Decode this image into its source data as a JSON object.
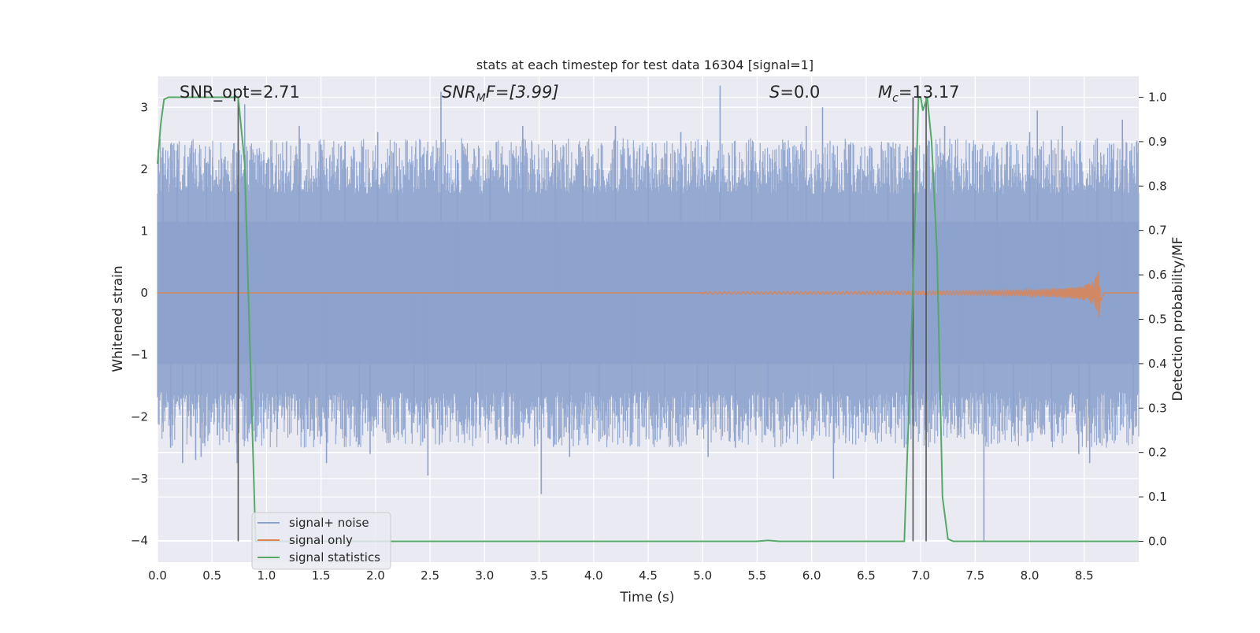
{
  "chart_data": {
    "type": "line",
    "title": "stats at each timestep for test data 16304 [signal=1]",
    "xlabel": "Time (s)",
    "ylabel": "Whitened strain",
    "y2label": "Detection probability/MF",
    "xlim": [
      0,
      9.0
    ],
    "ylim": [
      -4.35,
      3.5
    ],
    "y2lim": [
      -0.047,
      1.047
    ],
    "x_ticks": [
      0.0,
      0.5,
      1.0,
      1.5,
      2.0,
      2.5,
      3.0,
      3.5,
      4.0,
      4.5,
      5.0,
      5.5,
      6.0,
      6.5,
      7.0,
      7.5,
      8.0,
      8.5
    ],
    "x_tick_labels": [
      "0.0",
      "0.5",
      "1.0",
      "1.5",
      "2.0",
      "2.5",
      "3.0",
      "3.5",
      "4.0",
      "4.5",
      "5.0",
      "5.5",
      "6.0",
      "6.5",
      "7.0",
      "7.5",
      "8.0",
      "8.5"
    ],
    "y_ticks": [
      3,
      2,
      1,
      0,
      -1,
      -2,
      -3,
      -4
    ],
    "y_tick_labels": [
      "3",
      "2",
      "1",
      "0",
      "−1",
      "−2",
      "−3",
      "−4"
    ],
    "y2_ticks": [
      1.0,
      0.9,
      0.8,
      0.7,
      0.6,
      0.5,
      0.4,
      0.3,
      0.2,
      0.1,
      0.0
    ],
    "y2_tick_labels": [
      "1.0",
      "0.9",
      "0.8",
      "0.7",
      "0.6",
      "0.5",
      "0.4",
      "0.3",
      "0.2",
      "0.1",
      "0.0"
    ],
    "annotations": {
      "snr_opt": "SNR_opt=2.71",
      "snr_mf_main": "SNR",
      "snr_mf_sub": "M",
      "snr_mf_rest": "F=[3.99]",
      "s_main": "S",
      "s_rest": "=0.0",
      "mc_main": "M",
      "mc_sub": "c",
      "mc_rest": "=13.17"
    },
    "legend_position": "lower-left",
    "grid": true,
    "series": [
      {
        "name": "signal+ noise",
        "color": "#8da2cc",
        "axis": "left",
        "noise_band": [
          -1.6,
          1.6
        ],
        "spikes": [
          [
            0.05,
            2.35
          ],
          [
            0.12,
            -2.5
          ],
          [
            0.18,
            2.3
          ],
          [
            0.23,
            -2.75
          ],
          [
            0.28,
            2.2
          ],
          [
            0.35,
            -2.7
          ],
          [
            0.4,
            -2.65
          ],
          [
            0.45,
            2.1
          ],
          [
            0.55,
            -2.3
          ],
          [
            0.62,
            2.2
          ],
          [
            0.73,
            -2.75
          ],
          [
            0.8,
            3.05
          ],
          [
            0.9,
            -2.4
          ],
          [
            1.0,
            2.1
          ],
          [
            1.1,
            -2.2
          ],
          [
            1.3,
            2.7
          ],
          [
            1.38,
            -2.2
          ],
          [
            1.5,
            2.4
          ],
          [
            1.55,
            -2.75
          ],
          [
            1.72,
            2.45
          ],
          [
            1.85,
            -2.45
          ],
          [
            1.95,
            -2.6
          ],
          [
            2.02,
            2.6
          ],
          [
            2.2,
            2.05
          ],
          [
            2.35,
            -2.1
          ],
          [
            2.45,
            -2.35
          ],
          [
            2.48,
            -2.95
          ],
          [
            2.6,
            3.25
          ],
          [
            2.75,
            2.15
          ],
          [
            2.92,
            -2.35
          ],
          [
            3.05,
            2.3
          ],
          [
            3.2,
            -2.45
          ],
          [
            3.35,
            2.7
          ],
          [
            3.52,
            -3.25
          ],
          [
            3.65,
            2.4
          ],
          [
            3.78,
            -2.65
          ],
          [
            3.9,
            2.2
          ],
          [
            4.05,
            -2.4
          ],
          [
            4.2,
            2.7
          ],
          [
            4.35,
            -2.45
          ],
          [
            4.5,
            2.25
          ],
          [
            4.65,
            -2.1
          ],
          [
            4.8,
            2.6
          ],
          [
            4.95,
            -2.3
          ],
          [
            5.05,
            -2.65
          ],
          [
            5.16,
            3.35
          ],
          [
            5.3,
            -2.5
          ],
          [
            5.45,
            2.15
          ],
          [
            5.6,
            -2.2
          ],
          [
            5.78,
            2.3
          ],
          [
            5.95,
            2.7
          ],
          [
            6.1,
            3.0
          ],
          [
            6.2,
            -3.0
          ],
          [
            6.35,
            2.4
          ],
          [
            6.5,
            -2.3
          ],
          [
            6.7,
            2.1
          ],
          [
            6.85,
            -2.5
          ],
          [
            6.95,
            2.35
          ],
          [
            7.1,
            -2.2
          ],
          [
            7.22,
            2.7
          ],
          [
            7.35,
            -2.3
          ],
          [
            7.5,
            2.4
          ],
          [
            7.58,
            -4.0
          ],
          [
            7.7,
            2.25
          ],
          [
            7.85,
            -2.1
          ],
          [
            8.0,
            2.6
          ],
          [
            8.07,
            2.95
          ],
          [
            8.2,
            -2.4
          ],
          [
            8.3,
            2.7
          ],
          [
            8.45,
            -2.6
          ],
          [
            8.55,
            -2.75
          ],
          [
            8.62,
            2.5
          ],
          [
            8.75,
            2.4
          ],
          [
            8.85,
            2.8
          ],
          [
            8.95,
            -2.3
          ]
        ]
      },
      {
        "name": "signal only",
        "color": "#dd8452",
        "axis": "left",
        "chirp_start": 5.0,
        "chirp_peak_time": 8.65,
        "chirp_peak_amp": 0.5
      },
      {
        "name": "signal statistics",
        "color": "#55a868",
        "axis": "right",
        "x": [
          0.0,
          0.03,
          0.06,
          0.1,
          0.15,
          0.3,
          0.5,
          0.65,
          0.74,
          0.8,
          0.84,
          0.9,
          1.0,
          2.0,
          3.0,
          4.0,
          5.0,
          5.5,
          5.6,
          5.7,
          6.0,
          6.5,
          6.85,
          6.92,
          6.98,
          7.0,
          7.02,
          7.06,
          7.1,
          7.15,
          7.2,
          7.25,
          7.3,
          7.5,
          7.6,
          8.0,
          9.0
        ],
        "y": [
          0.85,
          0.94,
          0.995,
          1.0,
          1.0,
          1.0,
          1.0,
          1.0,
          1.0,
          0.85,
          0.5,
          0.0,
          0.0,
          0.0,
          0.0,
          0.0,
          0.0,
          0.0,
          0.002,
          0.0,
          0.0,
          0.0,
          0.0,
          0.5,
          1.0,
          1.0,
          0.97,
          1.0,
          0.9,
          0.65,
          0.1,
          0.005,
          0.0,
          0.0,
          0.0,
          0.0,
          0.0
        ]
      }
    ],
    "vertical_lines": [
      0.74,
      6.93,
      7.05
    ],
    "vertical_lines_color": "#555555"
  }
}
